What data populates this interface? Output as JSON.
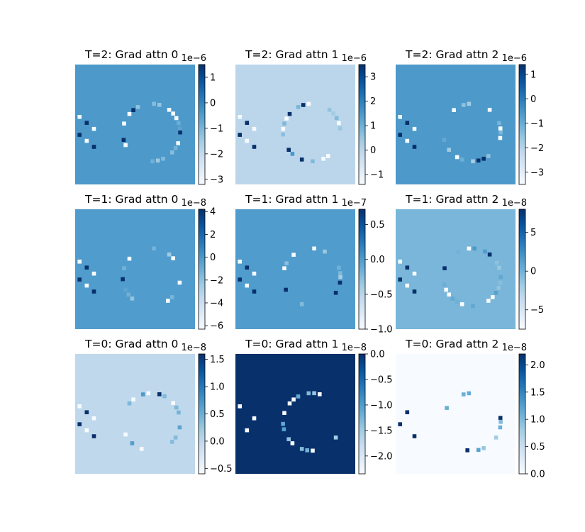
{
  "chart_data": [
    {
      "type": "heatmap",
      "title": "T=2: Grad attn 0",
      "cmap": "Blues",
      "colorbar": {
        "ticks": [
          "1",
          "0",
          "−1",
          "−2",
          "−3"
        ],
        "tick_values": [
          1,
          0,
          -1,
          -2,
          -3
        ],
        "range": [
          -3.2,
          1.5
        ],
        "exponent": "1e−6"
      },
      "background_value": -0.4
    },
    {
      "type": "heatmap",
      "title": "T=2: Grad attn 1",
      "cmap": "Blues",
      "colorbar": {
        "ticks": [
          "3",
          "2",
          "1",
          "0",
          "−1"
        ],
        "tick_values": [
          3,
          2,
          1,
          0,
          -1
        ],
        "range": [
          -1.4,
          3.5
        ],
        "exponent": "1e−6"
      },
      "background_value": 0.0
    },
    {
      "type": "heatmap",
      "title": "T=2: Grad attn 2",
      "cmap": "Blues",
      "colorbar": {
        "ticks": [
          "1",
          "0",
          "−1",
          "−2",
          "−3"
        ],
        "tick_values": [
          1,
          0,
          -1,
          -2,
          -3
        ],
        "range": [
          -3.5,
          1.4
        ],
        "exponent": "1e−6"
      },
      "background_value": -0.6
    },
    {
      "type": "heatmap",
      "title": "T=1: Grad attn 0",
      "cmap": "Blues",
      "colorbar": {
        "ticks": [
          "4",
          "2",
          "0",
          "−2",
          "−4",
          "−6"
        ],
        "tick_values": [
          4,
          2,
          0,
          -2,
          -4,
          -6
        ],
        "range": [
          -6.3,
          4.2
        ],
        "exponent": "1e−8"
      },
      "background_value": -0.2
    },
    {
      "type": "heatmap",
      "title": "T=1: Grad attn 1",
      "cmap": "Blues",
      "colorbar": {
        "ticks": [
          "0.5",
          "0.0",
          "−0.5",
          "−1.0"
        ],
        "tick_values": [
          0.5,
          0.0,
          -0.5,
          -1.0
        ],
        "range": [
          -1.0,
          0.72
        ],
        "exponent": "1e−7"
      },
      "background_value": 0.0
    },
    {
      "type": "heatmap",
      "title": "T=1: Grad attn 2",
      "cmap": "Blues",
      "colorbar": {
        "ticks": [
          "5",
          "0",
          "−5"
        ],
        "tick_values": [
          5,
          0,
          -5
        ],
        "range": [
          -7.5,
          8.0
        ],
        "exponent": "1e−8"
      },
      "background_value": -0.3
    },
    {
      "type": "heatmap",
      "title": "T=0: Grad attn 0",
      "cmap": "Blues",
      "colorbar": {
        "ticks": [
          "1.5",
          "1.0",
          "0.5",
          "0.0",
          "−0.5"
        ],
        "tick_values": [
          1.5,
          1.0,
          0.5,
          0.0,
          -0.5
        ],
        "range": [
          -0.6,
          1.6
        ],
        "exponent": "1e−8"
      },
      "background_value": 0.0
    },
    {
      "type": "heatmap",
      "title": "T=0: Grad attn 1",
      "cmap": "Blues",
      "colorbar": {
        "ticks": [
          "0.0",
          "−0.5",
          "−1.0",
          "−1.5",
          "−2.0"
        ],
        "tick_values": [
          0.0,
          -0.5,
          -1.0,
          -1.5,
          -2.0
        ],
        "range": [
          -2.35,
          0.0
        ],
        "exponent": "1e−8"
      },
      "background_value": 0.0
    },
    {
      "type": "heatmap",
      "title": "T=0: Grad attn 2",
      "cmap": "Blues",
      "colorbar": {
        "ticks": [
          "2.0",
          "1.5",
          "1.0",
          "0.5",
          "0.0"
        ],
        "tick_values": [
          2.0,
          1.5,
          1.0,
          0.5,
          0.0
        ],
        "range": [
          0.0,
          2.2
        ],
        "exponent": "1e−8"
      },
      "background_value": 0.0
    }
  ]
}
